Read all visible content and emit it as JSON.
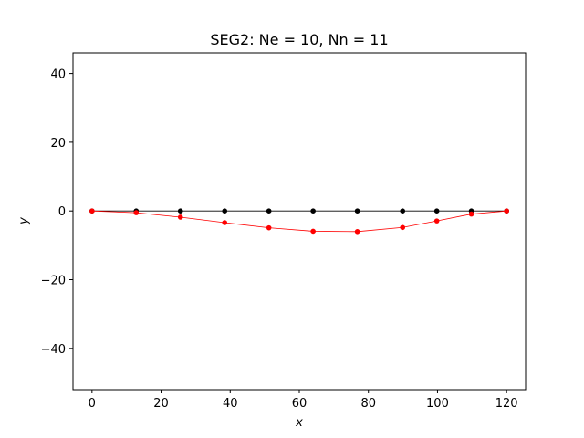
{
  "chart_data": {
    "type": "line",
    "title": "SEG2: Ne = 10, Nn = 11",
    "xlabel": "x",
    "ylabel": "y",
    "xlim": [
      -5.5,
      125.5
    ],
    "ylim": [
      -52,
      46
    ],
    "xticks": [
      0,
      20,
      40,
      60,
      80,
      100,
      120
    ],
    "xtick_labels": [
      "0",
      "20",
      "40",
      "60",
      "80",
      "100",
      "120"
    ],
    "yticks": [
      -40,
      -20,
      0,
      20,
      40
    ],
    "ytick_labels": [
      "−40",
      "−20",
      "0",
      "20",
      "40"
    ],
    "grid": false,
    "series": [
      {
        "color": "#000000",
        "x": [
          0,
          12.8,
          25.6,
          38.4,
          51.2,
          64.0,
          76.8,
          89.9,
          99.8,
          109.8,
          120
        ],
        "y": [
          0,
          0,
          0,
          0,
          0,
          0,
          0,
          0,
          0,
          0,
          0
        ]
      },
      {
        "color": "#ff0000",
        "x": [
          0,
          12.8,
          25.6,
          38.4,
          51.2,
          64.0,
          76.8,
          89.9,
          99.8,
          109.8,
          120
        ],
        "y": [
          0,
          -0.5,
          -1.8,
          -3.4,
          -4.9,
          -5.9,
          -6.0,
          -4.8,
          -2.9,
          -0.9,
          0
        ]
      }
    ]
  }
}
